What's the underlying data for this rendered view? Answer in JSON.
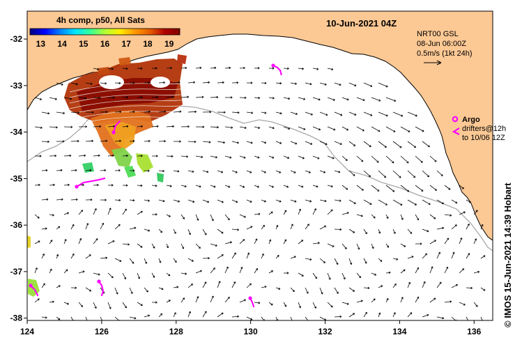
{
  "map": {
    "timestamp": "10-Jun-2021 04Z",
    "credit": "© IMOS 15-Jun-2021 14:39 Hobart"
  },
  "colorbar": {
    "title": "4h comp, p50, All Sats",
    "ticks": [
      "13",
      "14",
      "15",
      "16",
      "17",
      "18",
      "19"
    ],
    "min": 12.5,
    "max": 19.5,
    "colors": [
      "#00007f",
      "#0000ff",
      "#0080ff",
      "#00e5ff",
      "#33ff99",
      "#b3ff33",
      "#ffee00",
      "#ff9900",
      "#e65c00",
      "#b30000",
      "#7f0000"
    ]
  },
  "legend": {
    "velocity": {
      "line1": "NRT00 GSL",
      "line2": "08-Jun 06:00Z",
      "line3": "0.5m/s (1kt 24h)"
    },
    "drifters": {
      "title": "Argo",
      "line1": "drifters@12h",
      "line2": "to 10/06 12Z"
    }
  },
  "axes": {
    "lon_ticks": [
      "124",
      "126",
      "128",
      "130",
      "132",
      "134",
      "136"
    ],
    "lat_ticks": [
      "-32",
      "-33",
      "-34",
      "-35",
      "-36",
      "-37",
      "-38"
    ],
    "lon_range": [
      124,
      136.5
    ],
    "lat_range": [
      -38.05,
      -31.4
    ]
  },
  "colors": {
    "land": "#fcc894",
    "ocean": "#ffffff",
    "drifter": "#ff00ff",
    "isobath": "#a8a8a8",
    "arrow": "#000000"
  }
}
